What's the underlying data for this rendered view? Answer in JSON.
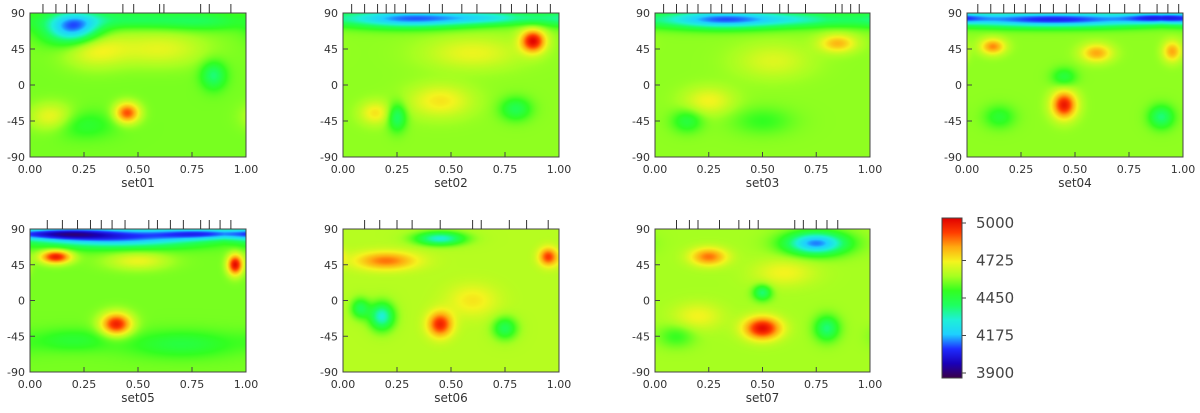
{
  "chart_data": {
    "type": "heatmap",
    "panels": [
      {
        "title": "set01",
        "x_ticks": [
          "0.00",
          "0.25",
          "0.50",
          "0.75",
          "1.00"
        ],
        "y_ticks": [
          "90",
          "45",
          "0",
          "-45",
          "-90"
        ],
        "xlim": [
          0,
          1
        ],
        "ylim": [
          -90,
          90
        ],
        "observation_phases": [
          0.06,
          0.12,
          0.17,
          0.21,
          0.27,
          0.43,
          0.48,
          0.6,
          0.62,
          0.79,
          0.83,
          0.93
        ],
        "background": 4560,
        "features": [
          {
            "x": 0.2,
            "y": 72,
            "sx": 0.09,
            "sy": 14,
            "v": 4130
          },
          {
            "x": 0.45,
            "y": 82,
            "sx": 0.18,
            "sy": 8,
            "v": 4420
          },
          {
            "x": 0.8,
            "y": 80,
            "sx": 0.15,
            "sy": 8,
            "v": 4430
          },
          {
            "x": 0.45,
            "y": -35,
            "sx": 0.04,
            "sy": 9,
            "v": 4890
          },
          {
            "x": 0.3,
            "y": 45,
            "sx": 0.1,
            "sy": 16,
            "v": 4700
          },
          {
            "x": 0.6,
            "y": 45,
            "sx": 0.15,
            "sy": 15,
            "v": 4680
          },
          {
            "x": 0.85,
            "y": 12,
            "sx": 0.04,
            "sy": 12,
            "v": 4380
          },
          {
            "x": 0.25,
            "y": -50,
            "sx": 0.1,
            "sy": 12,
            "v": 4470
          },
          {
            "x": 0.1,
            "y": -40,
            "sx": 0.07,
            "sy": 12,
            "v": 4700
          }
        ]
      },
      {
        "title": "set02",
        "x_ticks": [
          "0.00",
          "0.25",
          "0.50",
          "0.75",
          "1.00"
        ],
        "y_ticks": [
          "90",
          "45",
          "0",
          "-45",
          "-90"
        ],
        "xlim": [
          0,
          1
        ],
        "ylim": [
          -90,
          90
        ],
        "observation_phases": [
          0.04,
          0.1,
          0.16,
          0.2,
          0.24,
          0.29,
          0.4,
          0.46,
          0.55,
          0.62,
          0.73,
          0.78,
          0.85,
          0.9,
          0.96
        ],
        "background": 4580,
        "features": [
          {
            "x": 0.3,
            "y": 83,
            "sx": 0.22,
            "sy": 8,
            "v": 4150
          },
          {
            "x": 0.7,
            "y": 84,
            "sx": 0.18,
            "sy": 6,
            "v": 4350
          },
          {
            "x": 0.88,
            "y": 55,
            "sx": 0.04,
            "sy": 10,
            "v": 4980
          },
          {
            "x": 0.25,
            "y": -40,
            "sx": 0.03,
            "sy": 12,
            "v": 4380
          },
          {
            "x": 0.8,
            "y": -30,
            "sx": 0.05,
            "sy": 10,
            "v": 4420
          },
          {
            "x": 0.45,
            "y": -20,
            "sx": 0.1,
            "sy": 14,
            "v": 4720
          },
          {
            "x": 0.15,
            "y": -35,
            "sx": 0.05,
            "sy": 10,
            "v": 4720
          },
          {
            "x": 0.6,
            "y": 40,
            "sx": 0.15,
            "sy": 14,
            "v": 4690
          }
        ]
      },
      {
        "title": "set03",
        "x_ticks": [
          "0.00",
          "0.25",
          "0.50",
          "0.75",
          "1.00"
        ],
        "y_ticks": [
          "90",
          "45",
          "0",
          "-45",
          "-90"
        ],
        "xlim": [
          0,
          1
        ],
        "ylim": [
          -90,
          90
        ],
        "observation_phases": [
          0.04,
          0.1,
          0.15,
          0.2,
          0.26,
          0.31,
          0.36,
          0.42,
          0.5,
          0.58,
          0.62,
          0.7,
          0.84,
          0.87,
          0.91,
          0.95
        ],
        "background": 4580,
        "features": [
          {
            "x": 0.3,
            "y": 82,
            "sx": 0.2,
            "sy": 8,
            "v": 4150
          },
          {
            "x": 0.7,
            "y": 82,
            "sx": 0.2,
            "sy": 7,
            "v": 4380
          },
          {
            "x": 0.85,
            "y": 52,
            "sx": 0.06,
            "sy": 8,
            "v": 4780
          },
          {
            "x": 0.15,
            "y": -45,
            "sx": 0.05,
            "sy": 10,
            "v": 4450
          },
          {
            "x": 0.5,
            "y": -45,
            "sx": 0.1,
            "sy": 12,
            "v": 4500
          },
          {
            "x": 0.25,
            "y": -20,
            "sx": 0.08,
            "sy": 12,
            "v": 4700
          },
          {
            "x": 0.55,
            "y": 30,
            "sx": 0.12,
            "sy": 15,
            "v": 4670
          }
        ]
      },
      {
        "title": "set04",
        "x_ticks": [
          "0.00",
          "0.25",
          "0.50",
          "0.75",
          "1.00"
        ],
        "y_ticks": [
          "90",
          "45",
          "0",
          "-45",
          "-90"
        ],
        "xlim": [
          0,
          1
        ],
        "ylim": [
          -90,
          90
        ],
        "observation_phases": [
          0.05,
          0.11,
          0.17,
          0.22,
          0.27,
          0.34,
          0.4,
          0.46,
          0.52,
          0.6,
          0.66,
          0.73,
          0.8,
          0.88,
          0.93,
          0.98
        ],
        "background": 4580,
        "features": [
          {
            "x": 0.4,
            "y": 82,
            "sx": 0.35,
            "sy": 7,
            "v": 4080
          },
          {
            "x": 0.9,
            "y": 84,
            "sx": 0.12,
            "sy": 5,
            "v": 4250
          },
          {
            "x": 0.12,
            "y": 48,
            "sx": 0.04,
            "sy": 7,
            "v": 4830
          },
          {
            "x": 0.45,
            "y": -25,
            "sx": 0.04,
            "sy": 12,
            "v": 4960
          },
          {
            "x": 0.6,
            "y": 40,
            "sx": 0.05,
            "sy": 8,
            "v": 4800
          },
          {
            "x": 0.95,
            "y": 42,
            "sx": 0.03,
            "sy": 9,
            "v": 4800
          },
          {
            "x": 0.45,
            "y": 10,
            "sx": 0.04,
            "sy": 8,
            "v": 4450
          },
          {
            "x": 0.15,
            "y": -40,
            "sx": 0.05,
            "sy": 10,
            "v": 4470
          },
          {
            "x": 0.9,
            "y": -40,
            "sx": 0.04,
            "sy": 10,
            "v": 4380
          }
        ]
      },
      {
        "title": "set05",
        "x_ticks": [
          "0.00",
          "0.25",
          "0.50",
          "0.75",
          "1.00"
        ],
        "y_ticks": [
          "90",
          "45",
          "0",
          "-45",
          "-90"
        ],
        "xlim": [
          0,
          1
        ],
        "ylim": [
          -90,
          90
        ],
        "observation_phases": [
          0.08,
          0.15,
          0.22,
          0.28,
          0.33,
          0.38,
          0.44,
          0.55,
          0.59,
          0.65,
          0.71,
          0.79,
          0.83,
          0.88,
          0.93
        ],
        "background": 4560,
        "features": [
          {
            "x": 0.4,
            "y": 80,
            "sx": 0.28,
            "sy": 9,
            "v": 4120
          },
          {
            "x": 0.15,
            "y": 84,
            "sx": 0.15,
            "sy": 5,
            "v": 4250
          },
          {
            "x": 0.8,
            "y": 84,
            "sx": 0.15,
            "sy": 5,
            "v": 4250
          },
          {
            "x": 0.12,
            "y": 55,
            "sx": 0.05,
            "sy": 6,
            "v": 4960
          },
          {
            "x": 0.95,
            "y": 45,
            "sx": 0.025,
            "sy": 9,
            "v": 4980
          },
          {
            "x": 0.4,
            "y": -30,
            "sx": 0.05,
            "sy": 10,
            "v": 4950
          },
          {
            "x": 0.5,
            "y": 50,
            "sx": 0.1,
            "sy": 8,
            "v": 4690
          },
          {
            "x": 0.7,
            "y": -55,
            "sx": 0.18,
            "sy": 12,
            "v": 4450
          },
          {
            "x": 0.2,
            "y": -50,
            "sx": 0.12,
            "sy": 10,
            "v": 4470
          }
        ]
      },
      {
        "title": "set06",
        "x_ticks": [
          "0.00",
          "0.25",
          "0.50",
          "0.75",
          "1.00"
        ],
        "y_ticks": [
          "90",
          "45",
          "0",
          "-45",
          "-90"
        ],
        "xlim": [
          0,
          1
        ],
        "ylim": [
          -90,
          90
        ],
        "observation_phases": [
          0.1,
          0.17,
          0.25,
          0.32,
          0.45,
          0.6,
          0.64,
          0.77,
          0.85,
          0.95
        ],
        "background": 4620,
        "features": [
          {
            "x": 0.45,
            "y": 78,
            "sx": 0.08,
            "sy": 6,
            "v": 4300
          },
          {
            "x": 0.2,
            "y": 50,
            "sx": 0.1,
            "sy": 8,
            "v": 4850
          },
          {
            "x": 0.95,
            "y": 55,
            "sx": 0.03,
            "sy": 8,
            "v": 4900
          },
          {
            "x": 0.08,
            "y": -10,
            "sx": 0.03,
            "sy": 9,
            "v": 4420
          },
          {
            "x": 0.18,
            "y": -20,
            "sx": 0.04,
            "sy": 12,
            "v": 4300
          },
          {
            "x": 0.45,
            "y": -30,
            "sx": 0.04,
            "sy": 11,
            "v": 4940
          },
          {
            "x": 0.75,
            "y": -35,
            "sx": 0.04,
            "sy": 10,
            "v": 4420
          },
          {
            "x": 0.6,
            "y": 0,
            "sx": 0.08,
            "sy": 14,
            "v": 4720
          }
        ]
      },
      {
        "title": "set07",
        "x_ticks": [
          "0.00",
          "0.25",
          "0.50",
          "0.75",
          "1.00"
        ],
        "y_ticks": [
          "90",
          "45",
          "0",
          "-45",
          "-90"
        ],
        "xlim": [
          0,
          1
        ],
        "ylim": [
          -90,
          90
        ],
        "observation_phases": [
          0.1,
          0.16,
          0.2,
          0.3,
          0.39,
          0.44,
          0.48,
          0.65,
          0.69,
          0.75,
          0.8,
          0.85
        ],
        "background": 4600,
        "features": [
          {
            "x": 0.75,
            "y": 72,
            "sx": 0.1,
            "sy": 10,
            "v": 4150
          },
          {
            "x": 0.25,
            "y": 55,
            "sx": 0.06,
            "sy": 8,
            "v": 4850
          },
          {
            "x": 0.5,
            "y": -35,
            "sx": 0.06,
            "sy": 10,
            "v": 4980
          },
          {
            "x": 0.5,
            "y": 10,
            "sx": 0.03,
            "sy": 7,
            "v": 4380
          },
          {
            "x": 0.8,
            "y": -35,
            "sx": 0.04,
            "sy": 11,
            "v": 4380
          },
          {
            "x": 0.6,
            "y": 35,
            "sx": 0.1,
            "sy": 12,
            "v": 4700
          },
          {
            "x": 0.2,
            "y": -20,
            "sx": 0.08,
            "sy": 12,
            "v": 4700
          },
          {
            "x": 0.1,
            "y": -45,
            "sx": 0.06,
            "sy": 10,
            "v": 4500
          }
        ]
      }
    ],
    "colorbar": {
      "min": 3900,
      "max": 5000,
      "tick_labels": [
        "5000",
        "4725",
        "4450",
        "4175",
        "3900"
      ],
      "tick_values": [
        5000,
        4725,
        4450,
        4175,
        3900
      ],
      "colors": [
        "#3a0048",
        "#1a00b8",
        "#1e2cff",
        "#1ed0ff",
        "#1ef0d8",
        "#1eff60",
        "#32ff20",
        "#a6ff20",
        "#f4f41e",
        "#ffaa10",
        "#ff3c00",
        "#e00000"
      ]
    }
  }
}
